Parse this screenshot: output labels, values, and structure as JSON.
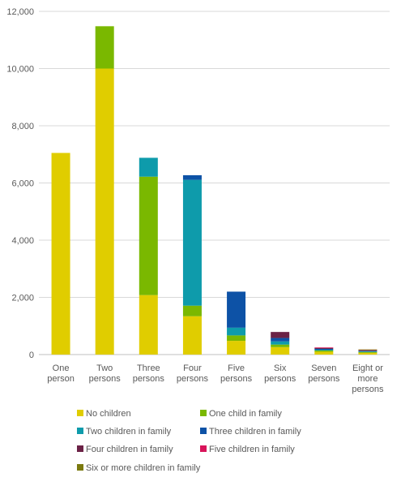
{
  "chart_data": {
    "type": "bar",
    "stacked": true,
    "categories": [
      [
        "One",
        "person"
      ],
      [
        "Two",
        "persons"
      ],
      [
        "Three",
        "persons"
      ],
      [
        "Four",
        "persons"
      ],
      [
        "Five",
        "persons"
      ],
      [
        "Six",
        "persons"
      ],
      [
        "Seven",
        "persons"
      ],
      [
        "Eight or",
        "more",
        "persons"
      ]
    ],
    "yticks": [
      "0",
      "2,000",
      "4,000",
      "6,000",
      "8,000",
      "10,000",
      "12,000"
    ],
    "ylim": [
      0,
      12000
    ],
    "grid": true,
    "legend_position": "bottom",
    "series": [
      {
        "name": "No children",
        "color": "#e0cd00",
        "values": [
          7050,
          10000,
          2080,
          1340,
          480,
          260,
          100,
          60
        ]
      },
      {
        "name": "One child in family",
        "color": "#7ab800",
        "values": [
          0,
          1480,
          4140,
          370,
          190,
          90,
          40,
          30
        ]
      },
      {
        "name": "Two children in family",
        "color": "#0e9bab",
        "values": [
          0,
          0,
          660,
          4400,
          270,
          110,
          30,
          20
        ]
      },
      {
        "name": "Three children in family",
        "color": "#0d52a6",
        "values": [
          0,
          0,
          0,
          160,
          1260,
          120,
          30,
          20
        ]
      },
      {
        "name": "Four children in family",
        "color": "#6b2246",
        "values": [
          0,
          0,
          0,
          0,
          0,
          210,
          30,
          15
        ]
      },
      {
        "name": "Five children in family",
        "color": "#d8145a",
        "values": [
          0,
          0,
          0,
          0,
          0,
          0,
          20,
          10
        ]
      },
      {
        "name": "Six or more children in family",
        "color": "#7b7a0f",
        "values": [
          0,
          0,
          0,
          0,
          0,
          0,
          0,
          25
        ]
      }
    ]
  }
}
